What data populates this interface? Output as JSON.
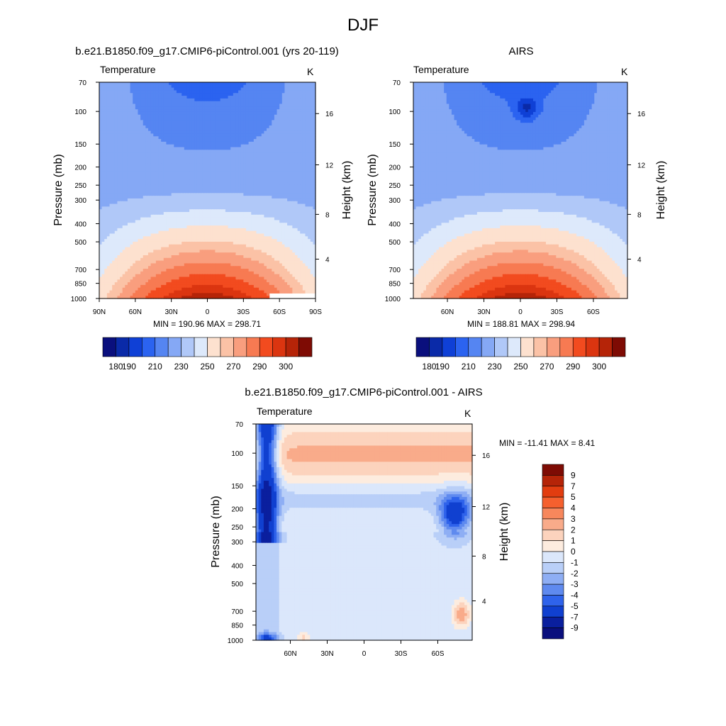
{
  "figure": {
    "title": "DJF"
  },
  "chart_data": [
    {
      "type": "heatmap",
      "title": "b.e21.B1850.f09_g17.CMIP6-piControl.001 (yrs 20-119)",
      "variable": "Temperature",
      "units": "K",
      "ylabel": "Pressure (mb)",
      "y2label": "Height (km)",
      "xticks": [
        "90N",
        "60N",
        "30N",
        "0",
        "30S",
        "60S",
        "90S"
      ],
      "yticks": [
        "70",
        "100",
        "150",
        "200",
        "250",
        "300",
        "400",
        "500",
        "700",
        "850",
        "1000"
      ],
      "y2ticks": [
        "16",
        "12",
        "8",
        "4"
      ],
      "stats": "MIN = 190.96  MAX = 298.71",
      "min": 190.96,
      "max": 298.71,
      "colorbar": {
        "levels": [
          180,
          190,
          210,
          230,
          250,
          270,
          290,
          300
        ],
        "labels": [
          "180",
          "190",
          "210",
          "230",
          "250",
          "270",
          "290",
          "300"
        ]
      }
    },
    {
      "type": "heatmap",
      "title": "AIRS",
      "variable": "Temperature",
      "units": "K",
      "ylabel": "Pressure (mb)",
      "y2label": "Height (km)",
      "xticks": [
        "60N",
        "30N",
        "0",
        "30S",
        "60S"
      ],
      "yticks": [
        "70",
        "100",
        "150",
        "200",
        "250",
        "300",
        "400",
        "500",
        "700",
        "850",
        "1000"
      ],
      "y2ticks": [
        "16",
        "12",
        "8",
        "4"
      ],
      "stats": "MIN = 188.81  MAX = 298.94",
      "min": 188.81,
      "max": 298.94,
      "colorbar": {
        "levels": [
          180,
          190,
          210,
          230,
          250,
          270,
          290,
          300
        ],
        "labels": [
          "180",
          "190",
          "210",
          "230",
          "250",
          "270",
          "290",
          "300"
        ]
      }
    },
    {
      "type": "heatmap",
      "title": "b.e21.B1850.f09_g17.CMIP6-piControl.001 - AIRS",
      "variable": "Temperature",
      "units": "K",
      "ylabel": "Pressure (mb)",
      "y2label": "Height (km)",
      "xticks": [
        "60N",
        "30N",
        "0",
        "30S",
        "60S"
      ],
      "yticks": [
        "70",
        "100",
        "150",
        "200",
        "250",
        "300",
        "400",
        "500",
        "700",
        "850",
        "1000"
      ],
      "y2ticks": [
        "16",
        "12",
        "8",
        "4"
      ],
      "stats": "MIN = -11.41  MAX =   8.41",
      "min": -11.41,
      "max": 8.41,
      "colorbar": {
        "levels": [
          9,
          7,
          5,
          4,
          3,
          2,
          1,
          0,
          -1,
          -2,
          -3,
          -4,
          -5,
          -7,
          -9
        ],
        "labels": [
          "9",
          "7",
          "5",
          "4",
          "3",
          "2",
          "1",
          "0",
          "-1",
          "-2",
          "-3",
          "-4",
          "-5",
          "-7",
          "-9"
        ]
      }
    }
  ],
  "colors": {
    "abs_scale": [
      "#0a0f7d",
      "#0a2aa8",
      "#0f40d6",
      "#2b63f0",
      "#5585f2",
      "#85a8f5",
      "#b0c8f8",
      "#dde9fb",
      "#fde1cf",
      "#fbc2a6",
      "#f99e7e",
      "#f77a52",
      "#f24b1f",
      "#db3510",
      "#b52408",
      "#7e0b04"
    ],
    "diff_scale": [
      "#7e0b04",
      "#b52408",
      "#e23d10",
      "#f5602e",
      "#f7875c",
      "#f9ab8a",
      "#fcd3bd",
      "#fdecdf",
      "#dbe7fb",
      "#b9cff8",
      "#8eaef4",
      "#5f8aef",
      "#2f63eb",
      "#1040d0",
      "#0a1f9e",
      "#0a0f7d"
    ]
  }
}
